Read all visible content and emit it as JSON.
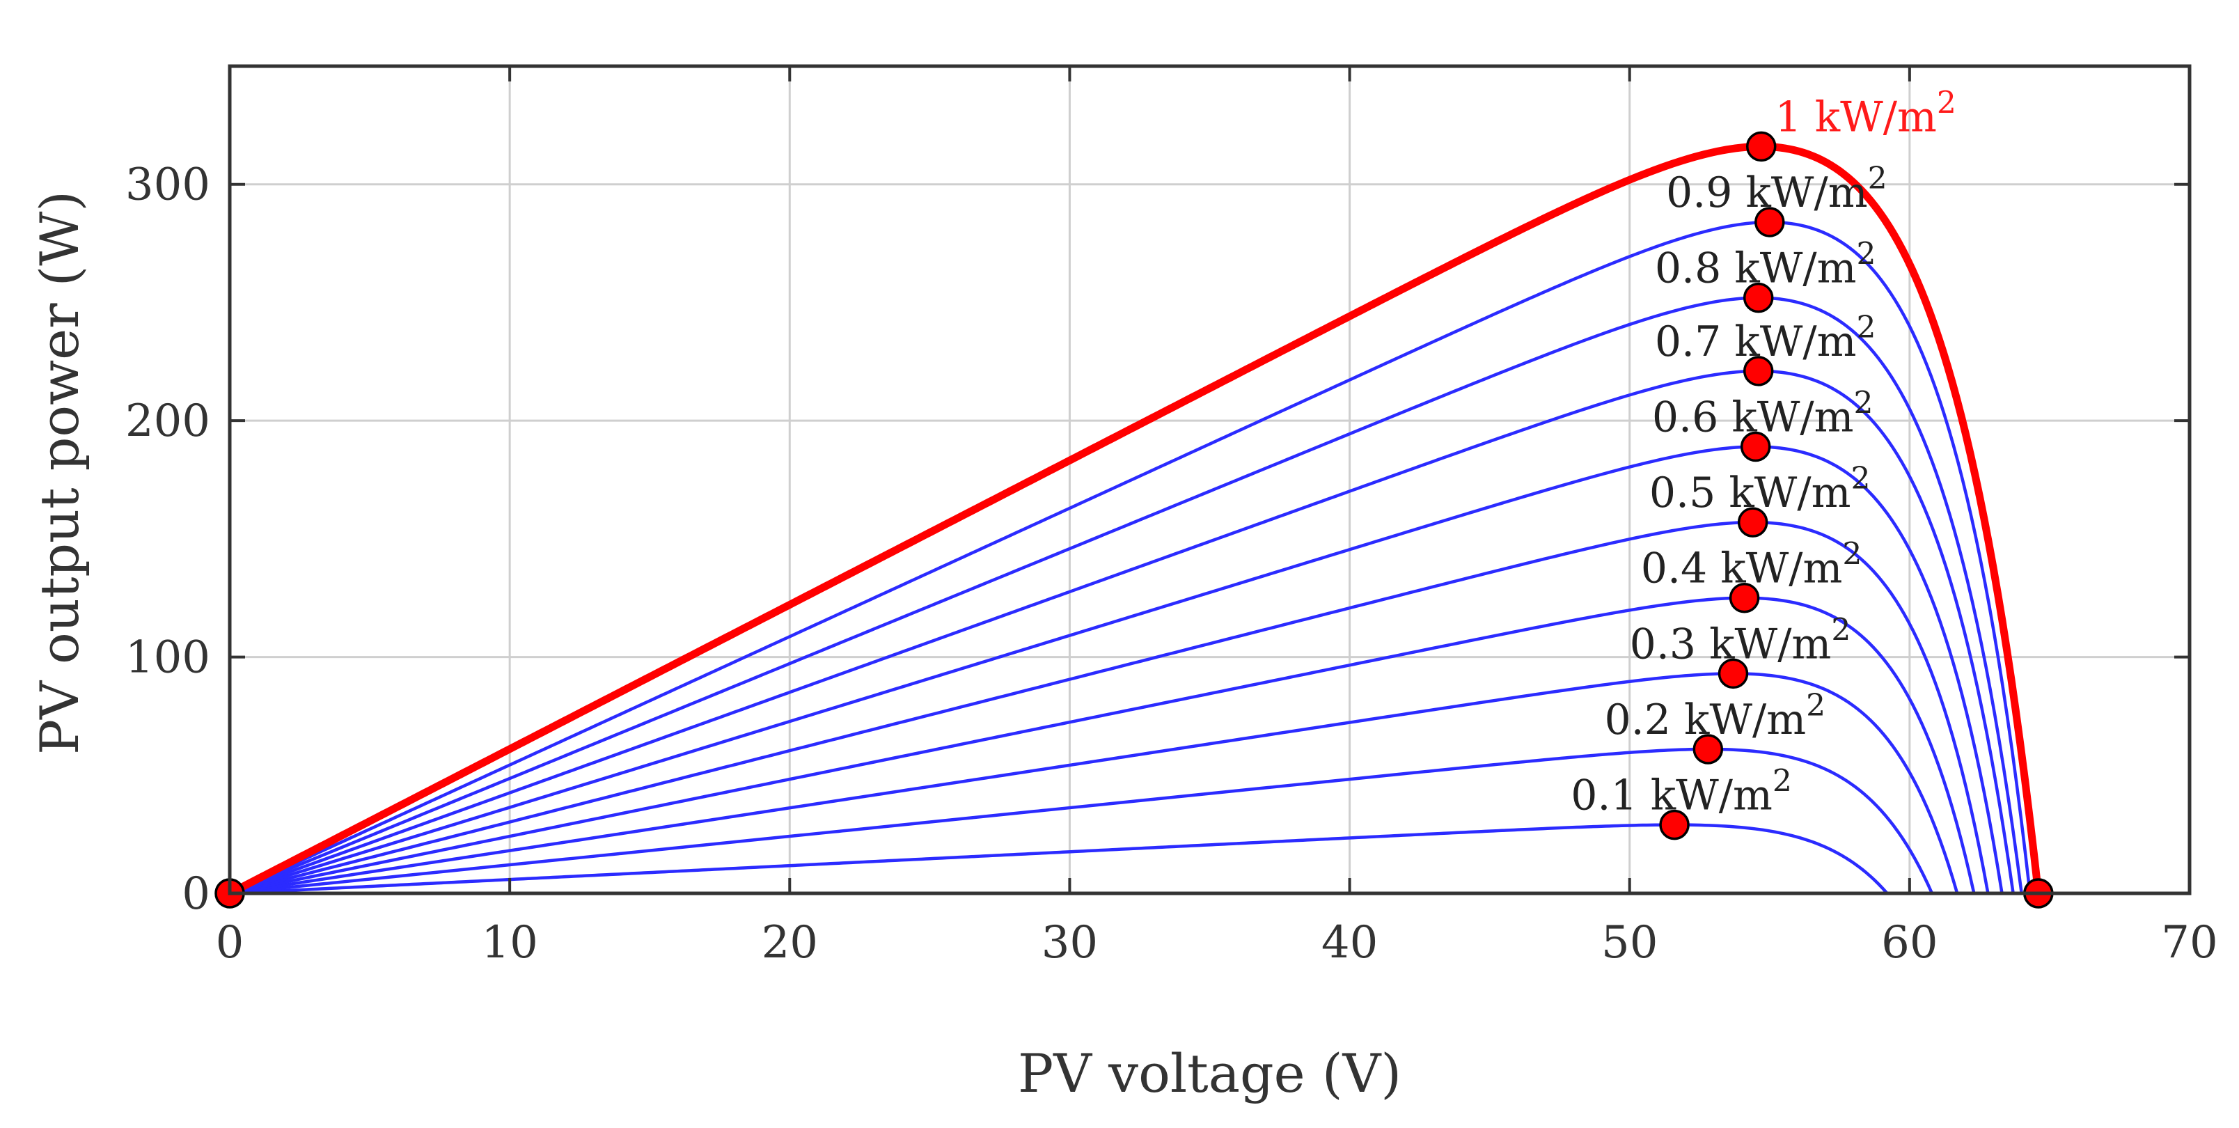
{
  "chart_data": {
    "type": "line",
    "xlabel": "PV voltage (V)",
    "ylabel": "PV output power (W)",
    "xlim": [
      0,
      70
    ],
    "ylim": [
      0,
      350
    ],
    "xticks": [
      0,
      10,
      20,
      30,
      40,
      50,
      60,
      70
    ],
    "yticks": [
      0,
      100,
      200,
      300
    ],
    "grid": true,
    "curve_model": {
      "shape_exponent": 16
    },
    "series": [
      {
        "name": "0.1 kW/m",
        "unit_exp": "2",
        "irradiance": 0.1,
        "voc": 59.2,
        "vmp": 51.6,
        "pmax": 29,
        "highlight": false
      },
      {
        "name": "0.2 kW/m",
        "unit_exp": "2",
        "irradiance": 0.2,
        "voc": 60.8,
        "vmp": 52.8,
        "pmax": 61,
        "highlight": false
      },
      {
        "name": "0.3 kW/m",
        "unit_exp": "2",
        "irradiance": 0.3,
        "voc": 61.7,
        "vmp": 53.7,
        "pmax": 93,
        "highlight": false
      },
      {
        "name": "0.4 kW/m",
        "unit_exp": "2",
        "irradiance": 0.4,
        "voc": 62.3,
        "vmp": 54.1,
        "pmax": 125,
        "highlight": false
      },
      {
        "name": "0.5 kW/m",
        "unit_exp": "2",
        "irradiance": 0.5,
        "voc": 62.8,
        "vmp": 54.4,
        "pmax": 157,
        "highlight": false
      },
      {
        "name": "0.6 kW/m",
        "unit_exp": "2",
        "irradiance": 0.6,
        "voc": 63.3,
        "vmp": 54.5,
        "pmax": 189,
        "highlight": false
      },
      {
        "name": "0.7 kW/m",
        "unit_exp": "2",
        "irradiance": 0.7,
        "voc": 63.7,
        "vmp": 54.6,
        "pmax": 221,
        "highlight": false
      },
      {
        "name": "0.8 kW/m",
        "unit_exp": "2",
        "irradiance": 0.8,
        "voc": 64.0,
        "vmp": 54.6,
        "pmax": 252,
        "highlight": false
      },
      {
        "name": "0.9 kW/m",
        "unit_exp": "2",
        "irradiance": 0.9,
        "voc": 64.3,
        "vmp": 55.0,
        "pmax": 284,
        "highlight": false
      },
      {
        "name": "1 kW/m",
        "unit_exp": "2",
        "irradiance": 1.0,
        "voc": 64.6,
        "vmp": 54.7,
        "pmax": 316,
        "highlight": true
      }
    ],
    "extra_points": [
      {
        "x": 0,
        "y": 0
      },
      {
        "x": 64.6,
        "y": 0
      }
    ]
  }
}
